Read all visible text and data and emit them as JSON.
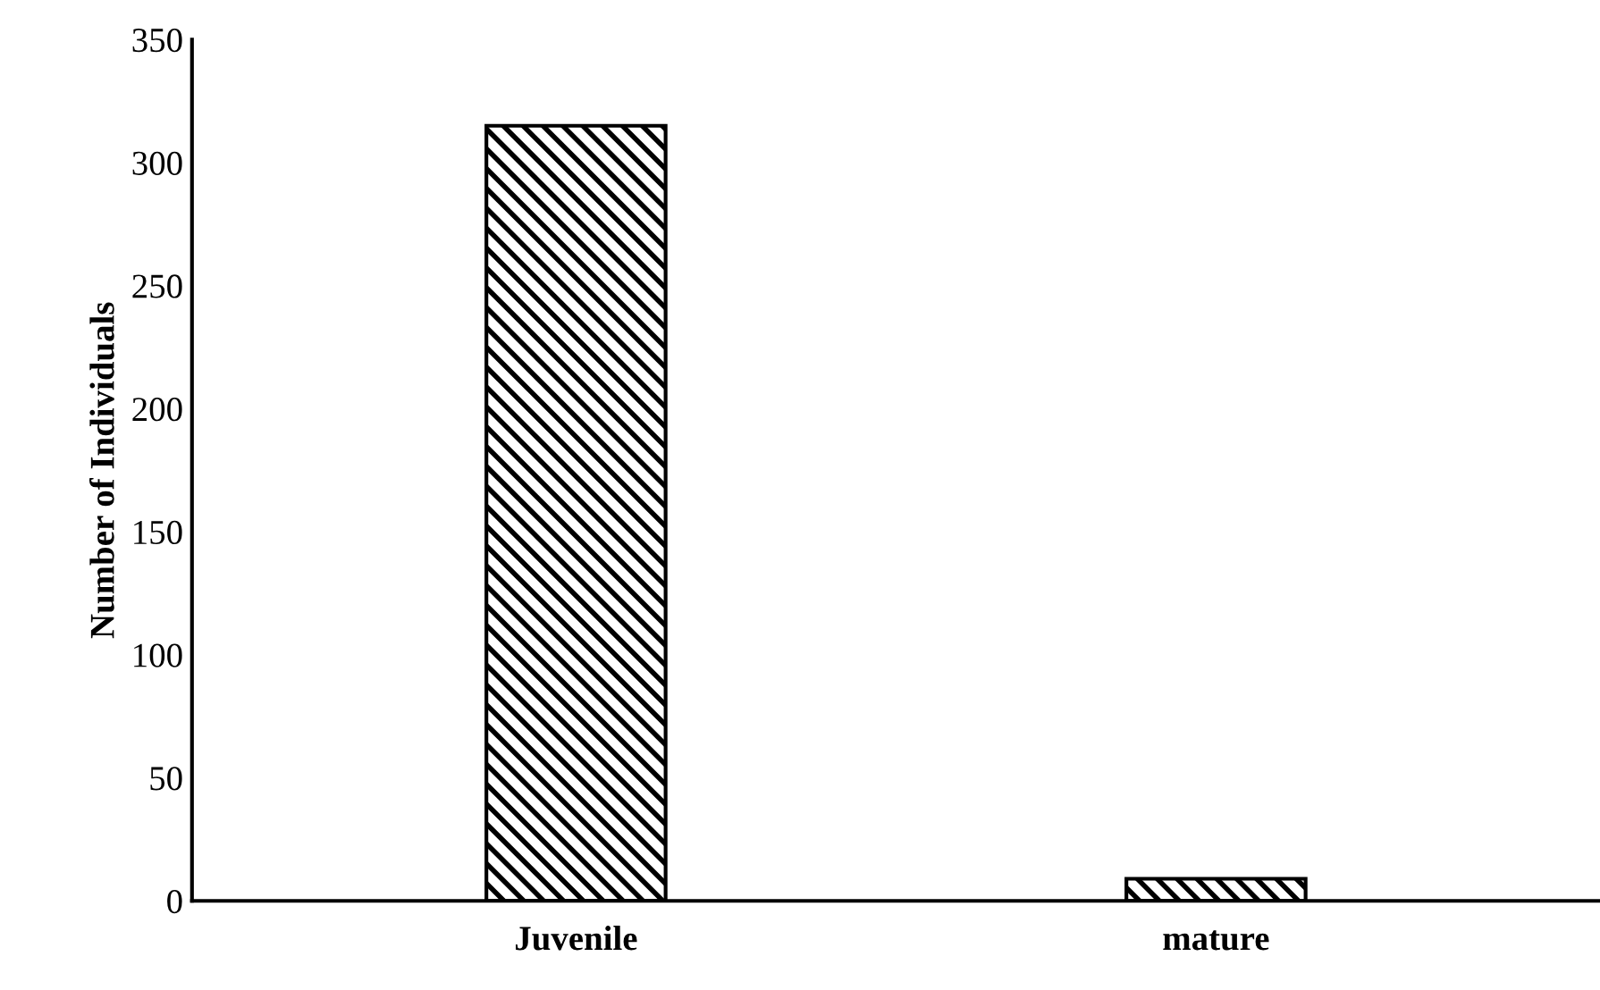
{
  "chart_data": {
    "type": "bar",
    "ylabel": "Number of Individuals",
    "categories": [
      "Juvenile",
      "mature"
    ],
    "values": [
      315,
      9
    ],
    "color": "#000000",
    "ylim": [
      0,
      350
    ],
    "yticks": [
      0,
      50,
      100,
      150,
      200,
      250,
      300,
      350
    ],
    "grid": false
  }
}
